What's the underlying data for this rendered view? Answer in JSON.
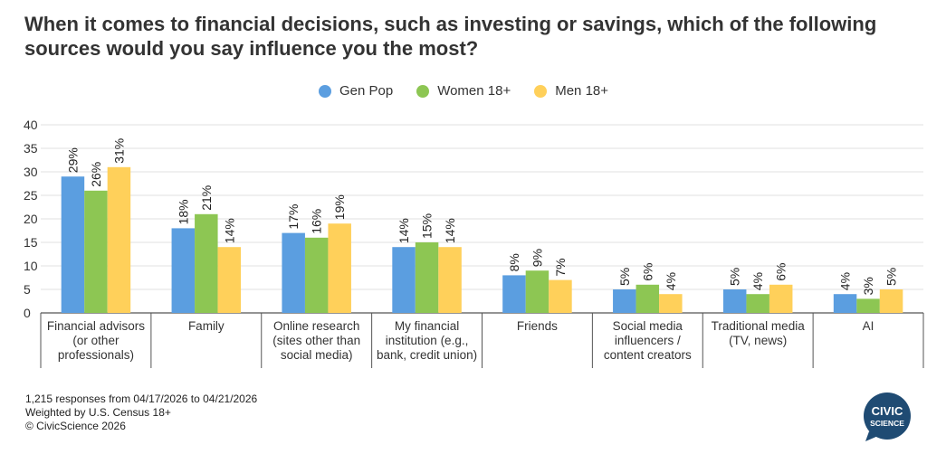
{
  "chart_data": {
    "type": "bar",
    "title": "When it comes to financial decisions, such as investing or savings, which of the following sources would you say influence you the most?",
    "xlabel": "",
    "ylabel": "",
    "ylim": [
      0,
      40
    ],
    "yticks": [
      0,
      5,
      10,
      15,
      20,
      25,
      30,
      35,
      40
    ],
    "grid": true,
    "legend_position": "top-center",
    "categories": [
      [
        "Financial advisors",
        "(or other",
        "professionals)"
      ],
      [
        "Family"
      ],
      [
        "Online research",
        "(sites other than",
        "social media)"
      ],
      [
        "My financial",
        "institution (e.g.,",
        "bank, credit union)"
      ],
      [
        "Friends"
      ],
      [
        "Social media",
        "influencers /",
        "content creators"
      ],
      [
        "Traditional media",
        "(TV, news)"
      ],
      [
        "AI"
      ]
    ],
    "series": [
      {
        "name": "Gen Pop",
        "color": "#5b9ee0",
        "values": [
          29,
          18,
          17,
          14,
          8,
          5,
          5,
          4
        ]
      },
      {
        "name": "Women 18+",
        "color": "#8dc653",
        "values": [
          26,
          21,
          16,
          15,
          9,
          6,
          4,
          3
        ]
      },
      {
        "name": "Men 18+",
        "color": "#ffd05a",
        "values": [
          31,
          14,
          19,
          14,
          7,
          4,
          6,
          5
        ]
      }
    ]
  },
  "footer": {
    "responses": "1,215 responses from 04/17/2026 to 04/21/2026",
    "weighting": "Weighted by U.S. Census 18+",
    "copyright": "© CivicScience 2026"
  },
  "logo": {
    "line1": "CIVIC",
    "line2": "SCIENCE",
    "color": "#1f4b73"
  }
}
